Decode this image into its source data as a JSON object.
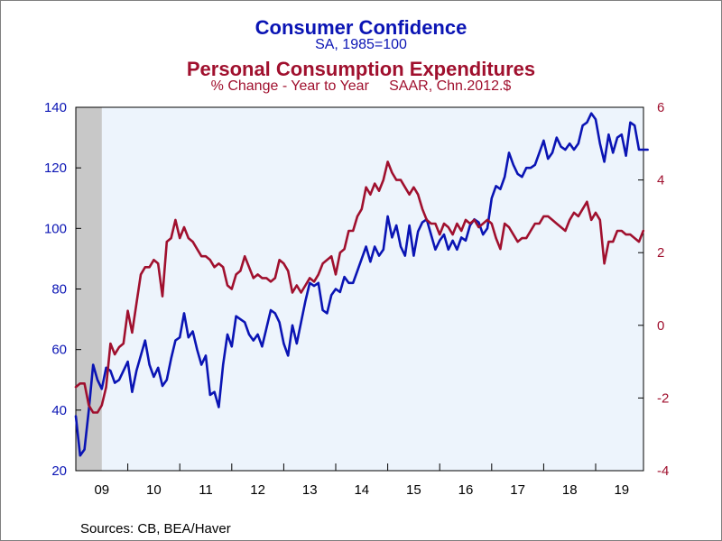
{
  "titles": {
    "title1": "Consumer Confidence",
    "subtitle1": "SA, 1985=100",
    "title2": "Personal Consumption Expenditures",
    "subtitle2": "% Change - Year to Year     SAAR, Chn.2012.$"
  },
  "source": "Sources:  CB, BEA/Haver",
  "colors": {
    "left": "#0a14b4",
    "right": "#a0102e",
    "recession": "#c8c8c8",
    "plot_bg": "#edf4fc"
  },
  "chart_data": {
    "type": "line",
    "x_range": [
      2009.0,
      2019.92
    ],
    "x_tick_labels": [
      "09",
      "10",
      "11",
      "12",
      "13",
      "14",
      "15",
      "16",
      "17",
      "18",
      "19"
    ],
    "recession_shading": [
      [
        2009.0,
        2009.5
      ]
    ],
    "left_axis": {
      "ylim": [
        20,
        140
      ],
      "ticks": [
        20,
        40,
        60,
        80,
        100,
        120,
        140
      ]
    },
    "right_axis": {
      "ylim": [
        -4,
        6
      ],
      "ticks": [
        -4,
        -2,
        0,
        2,
        4,
        6
      ]
    },
    "series": [
      {
        "name": "Consumer Confidence",
        "axis": "left",
        "start": 2009.0,
        "step_months": 1,
        "values": [
          38,
          25,
          27,
          40,
          55,
          50,
          47,
          54,
          53,
          49,
          50,
          53,
          56,
          46,
          53,
          58,
          63,
          55,
          51,
          54,
          48,
          50,
          57,
          63,
          64,
          72,
          64,
          66,
          60,
          55,
          58,
          45,
          46,
          41,
          55,
          65,
          61,
          71,
          70,
          69,
          65,
          63,
          65,
          61,
          67,
          73,
          72,
          69,
          62,
          58,
          68,
          62,
          69,
          76,
          82,
          81,
          82,
          73,
          72,
          78,
          80,
          79,
          84,
          82,
          82,
          86,
          90,
          94,
          89,
          94,
          91,
          93,
          104,
          97,
          101,
          94,
          91,
          101,
          91,
          99,
          102,
          103,
          98,
          93,
          96,
          98,
          93,
          96,
          93,
          97,
          96,
          101,
          103,
          102,
          98,
          100,
          110,
          114,
          113,
          117,
          125,
          121,
          118,
          117,
          120,
          120,
          121,
          125,
          129,
          123,
          125,
          130,
          127,
          126,
          128,
          126,
          128,
          134,
          135,
          138,
          136,
          128,
          122,
          131,
          125,
          130,
          131,
          124,
          135,
          134,
          126,
          126,
          126
        ]
      },
      {
        "name": "Personal Consumption Expenditures",
        "axis": "right",
        "start": 2009.0,
        "step_months": 1,
        "values": [
          -1.7,
          -1.6,
          -1.6,
          -2.2,
          -2.4,
          -2.4,
          -2.2,
          -1.7,
          -0.5,
          -0.8,
          -0.6,
          -0.5,
          0.4,
          -0.2,
          0.6,
          1.4,
          1.6,
          1.6,
          1.8,
          1.7,
          0.8,
          2.3,
          2.4,
          2.9,
          2.4,
          2.7,
          2.4,
          2.3,
          2.1,
          1.9,
          1.9,
          1.8,
          1.6,
          1.7,
          1.6,
          1.1,
          1.0,
          1.4,
          1.5,
          1.9,
          1.6,
          1.3,
          1.4,
          1.3,
          1.3,
          1.2,
          1.3,
          1.8,
          1.7,
          1.5,
          0.9,
          1.1,
          0.9,
          1.1,
          1.3,
          1.2,
          1.4,
          1.7,
          1.8,
          1.9,
          1.4,
          2.0,
          2.1,
          2.6,
          2.6,
          3.0,
          3.2,
          3.8,
          3.6,
          3.9,
          3.7,
          4.0,
          4.5,
          4.2,
          4.0,
          4.0,
          3.8,
          3.6,
          3.8,
          3.6,
          3.2,
          2.9,
          2.8,
          2.8,
          2.5,
          2.8,
          2.7,
          2.5,
          2.8,
          2.6,
          2.9,
          2.8,
          2.9,
          2.7,
          2.8,
          2.9,
          2.8,
          2.4,
          2.1,
          2.8,
          2.7,
          2.5,
          2.3,
          2.4,
          2.4,
          2.6,
          2.8,
          2.8,
          3.0,
          3.0,
          2.9,
          2.8,
          2.7,
          2.6,
          2.9,
          3.1,
          3.0,
          3.2,
          3.4,
          2.9,
          3.1,
          2.9,
          1.7,
          2.3,
          2.3,
          2.6,
          2.6,
          2.5,
          2.5,
          2.4,
          2.3,
          2.6
        ]
      }
    ]
  }
}
